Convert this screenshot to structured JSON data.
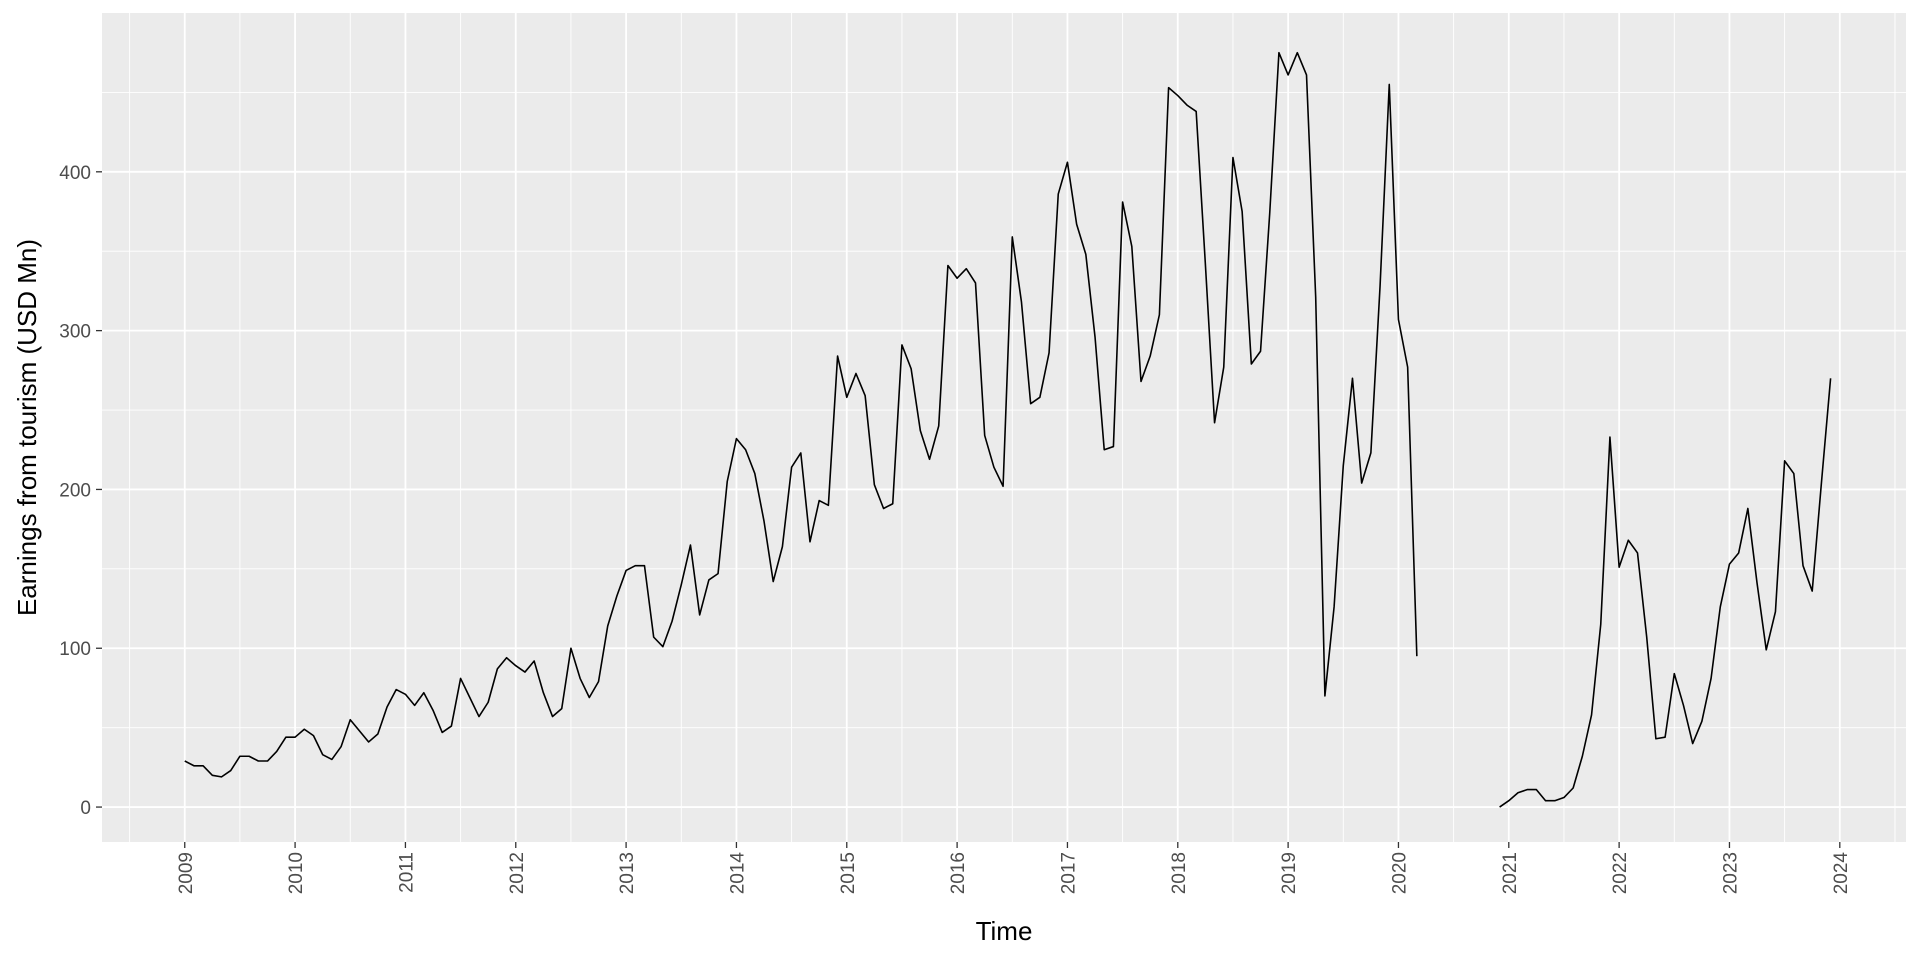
{
  "chart_data": {
    "type": "line",
    "title": "",
    "xlabel": "Time",
    "ylabel": "Earnings from tourism (USD Mn)",
    "xlim": [
      2008.25,
      2024.6
    ],
    "ylim": [
      -22,
      500
    ],
    "grid": true,
    "legend": "none",
    "colors": {
      "panel": "#ebebeb",
      "grid": "#ffffff",
      "line": "#000000",
      "tick_text": "#4d4d4d",
      "tick_mark": "#333333"
    },
    "x_ticks": [
      2009,
      2010,
      2011,
      2012,
      2013,
      2014,
      2015,
      2016,
      2017,
      2018,
      2019,
      2020,
      2021,
      2022,
      2023,
      2024
    ],
    "x_tick_labels": [
      "2009",
      "2010",
      "2011",
      "2012",
      "2013",
      "2014",
      "2015",
      "2016",
      "2017",
      "2018",
      "2019",
      "2020",
      "2021",
      "2022",
      "2023",
      "2024"
    ],
    "y_ticks": [
      0,
      100,
      200,
      300,
      400
    ],
    "y_tick_labels": [
      "0",
      "100",
      "200",
      "300",
      "400"
    ],
    "series": [
      {
        "segments": [
          {
            "start": "2009-01",
            "values": [
              29,
              26,
              26,
              20,
              19,
              23,
              32,
              32,
              29,
              29,
              35,
              44,
              44,
              49,
              45,
              33,
              30,
              38,
              55,
              48,
              41,
              46,
              63,
              74,
              71,
              64,
              72,
              61,
              47,
              51,
              81,
              69,
              57,
              66,
              87,
              94,
              89,
              85,
              92,
              72,
              57,
              62,
              100,
              81,
              69,
              79,
              114,
              133,
              149,
              152,
              152,
              107,
              101,
              117,
              140,
              165,
              121,
              143,
              147,
              205,
              232,
              225,
              210,
              180,
              142,
              164,
              214,
              223,
              167,
              193,
              190,
              284,
              258,
              273,
              259,
              203,
              188,
              191,
              291,
              276,
              237,
              219,
              240,
              341,
              333,
              339,
              330,
              234,
              214,
              202,
              359,
              318,
              254,
              258,
              286,
              386,
              406,
              367,
              348,
              296,
              225,
              227,
              381,
              353,
              268,
              284,
              310,
              453,
              448,
              442,
              438,
              342,
              242,
              277,
              409,
              375,
              279,
              287,
              374,
              475,
              461,
              475,
              461,
              321,
              70,
              126,
              215,
              270,
              204,
              223,
              328,
              455,
              307,
              277,
              95
            ]
          },
          {
            "start": "2020-12",
            "values": [
              0,
              4,
              9,
              11,
              11,
              4,
              4,
              6,
              12,
              32,
              58,
              115,
              233,
              151,
              168,
              160,
              107,
              43,
              44,
              84,
              64,
              40,
              54,
              81,
              126,
              153,
              160,
              188,
              141,
              99,
              123,
              218,
              210,
              152,
              136,
              204,
              270
            ]
          }
        ]
      }
    ]
  }
}
